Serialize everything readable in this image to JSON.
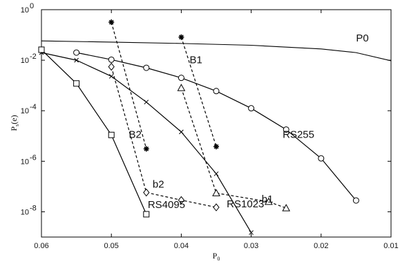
{
  "chart_data": {
    "type": "line",
    "xlabel": "P",
    "xlabel_sub": "0",
    "ylabel": "P",
    "ylabel_sub": "s",
    "ylabel_suffix": "(e)",
    "x_reversed": true,
    "xlim": [
      0.06,
      0.01
    ],
    "ylim": [
      1e-09,
      1
    ],
    "y_scale": "log",
    "grid": false,
    "x_ticks": [
      {
        "value": 0.06,
        "label": "0.06"
      },
      {
        "value": 0.05,
        "label": "0.05"
      },
      {
        "value": 0.04,
        "label": "0.04"
      },
      {
        "value": 0.03,
        "label": "0.03"
      },
      {
        "value": 0.02,
        "label": "0.02"
      },
      {
        "value": 0.01,
        "label": "0.01"
      }
    ],
    "y_ticks": [
      {
        "value": 1,
        "base": "10",
        "exp": "0"
      },
      {
        "value": 0.01,
        "base": "10",
        "exp": "-2"
      },
      {
        "value": 0.0001,
        "base": "10",
        "exp": "-4"
      },
      {
        "value": 1e-06,
        "base": "10",
        "exp": "-6"
      },
      {
        "value": 1e-08,
        "base": "10",
        "exp": "-8"
      }
    ],
    "series": [
      {
        "name": "P0",
        "marker": "none",
        "dash": false,
        "label_at": [
          0.015,
          0.055
        ],
        "points": [
          [
            0.06,
            0.058
          ],
          [
            0.05,
            0.052
          ],
          [
            0.04,
            0.046
          ],
          [
            0.03,
            0.039
          ],
          [
            0.02,
            0.028
          ],
          [
            0.015,
            0.02
          ],
          [
            0.01,
            0.0095
          ]
        ]
      },
      {
        "name": "RS255",
        "marker": "circle",
        "dash": false,
        "label_at": [
          0.0255,
          8.5e-06
        ],
        "points": [
          [
            0.055,
            0.02
          ],
          [
            0.05,
            0.0105
          ],
          [
            0.045,
            0.005
          ],
          [
            0.04,
            0.002
          ],
          [
            0.035,
            0.0006
          ],
          [
            0.03,
            0.000125
          ],
          [
            0.025,
            1.8e-05
          ],
          [
            0.02,
            1.3e-06
          ],
          [
            0.015,
            2.8e-08
          ]
        ]
      },
      {
        "name": "RS1023",
        "marker": "x",
        "dash": false,
        "label_at": [
          0.0335,
          1.5e-08
        ],
        "points": [
          [
            0.06,
            0.02
          ],
          [
            0.055,
            0.01
          ],
          [
            0.05,
            0.0023
          ],
          [
            0.045,
            0.00022
          ],
          [
            0.04,
            1.45e-05
          ],
          [
            0.035,
            3.2e-07
          ],
          [
            0.03,
            1.5e-09
          ]
        ]
      },
      {
        "name": "RS4095",
        "marker": "square",
        "dash": false,
        "label_at": [
          0.0448,
          1.4e-08
        ],
        "points": [
          [
            0.06,
            0.026
          ],
          [
            0.055,
            0.0012
          ],
          [
            0.05,
            1.1e-05
          ],
          [
            0.045,
            8e-09
          ]
        ]
      },
      {
        "name": "B1",
        "marker": "star",
        "dash": true,
        "label_at": [
          0.0388,
          0.0075
        ],
        "points": [
          [
            0.04,
            0.082
          ],
          [
            0.035,
            3.8e-06
          ]
        ]
      },
      {
        "name": "B2",
        "marker": "star",
        "dash": true,
        "label_at": [
          0.0475,
          8.5e-06
        ],
        "points": [
          [
            0.05,
            0.32
          ],
          [
            0.045,
            3.1e-06
          ]
        ]
      },
      {
        "name": "b1",
        "marker": "triangle",
        "dash": true,
        "label_at": [
          0.0285,
          2.3e-08
        ],
        "points": [
          [
            0.04,
            0.0008
          ],
          [
            0.035,
            5.5e-08
          ],
          [
            0.0275,
            2.5e-08
          ],
          [
            0.025,
            1.4e-08
          ]
        ]
      },
      {
        "name": "b2",
        "marker": "diamond",
        "dash": true,
        "label_at": [
          0.0441,
          9e-08
        ],
        "points": [
          [
            0.05,
            0.0055
          ],
          [
            0.045,
            5.8e-08
          ],
          [
            0.04,
            2.9e-08
          ],
          [
            0.035,
            1.5e-08
          ]
        ]
      }
    ]
  }
}
